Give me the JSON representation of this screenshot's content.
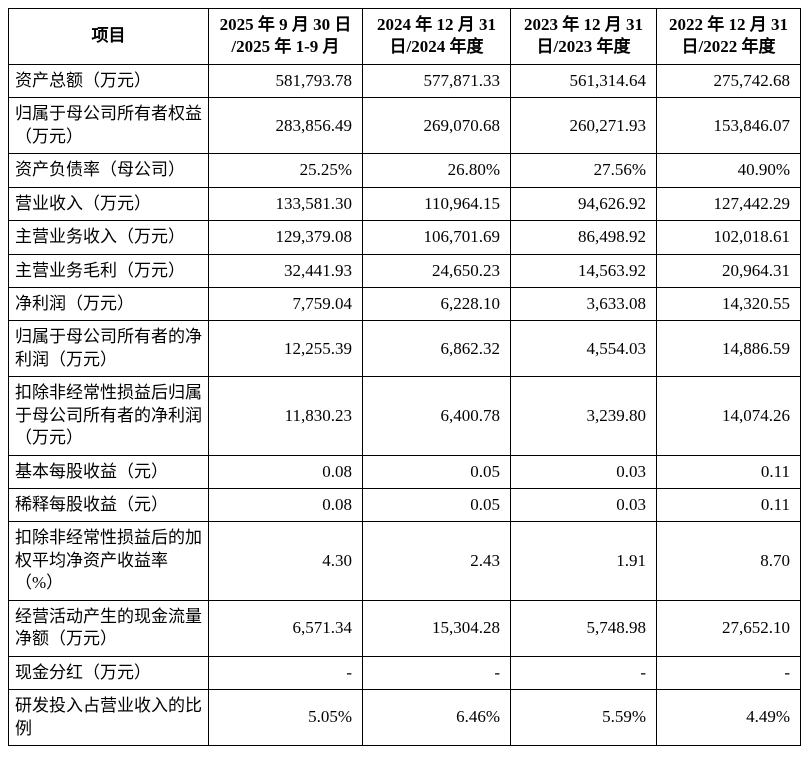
{
  "table": {
    "columns": [
      {
        "label": "项目"
      },
      {
        "label": "2025 年 9 月 30 日\n/2025 年 1-9 月"
      },
      {
        "label": "2024 年 12 月 31\n日/2024 年度"
      },
      {
        "label": "2023 年 12 月 31\n日/2023 年度"
      },
      {
        "label": "2022 年 12 月 31\n日/2022 年度"
      }
    ],
    "rows": [
      {
        "label": "资产总额（万元）",
        "values": [
          "581,793.78",
          "577,871.33",
          "561,314.64",
          "275,742.68"
        ]
      },
      {
        "label": "归属于母公司所有者权益（万元）",
        "values": [
          "283,856.49",
          "269,070.68",
          "260,271.93",
          "153,846.07"
        ]
      },
      {
        "label": "资产负债率（母公司）",
        "values": [
          "25.25%",
          "26.80%",
          "27.56%",
          "40.90%"
        ]
      },
      {
        "label": "营业收入（万元）",
        "values": [
          "133,581.30",
          "110,964.15",
          "94,626.92",
          "127,442.29"
        ]
      },
      {
        "label": "主营业务收入（万元）",
        "values": [
          "129,379.08",
          "106,701.69",
          "86,498.92",
          "102,018.61"
        ]
      },
      {
        "label": "主营业务毛利（万元）",
        "values": [
          "32,441.93",
          "24,650.23",
          "14,563.92",
          "20,964.31"
        ]
      },
      {
        "label": "净利润（万元）",
        "values": [
          "7,759.04",
          "6,228.10",
          "3,633.08",
          "14,320.55"
        ]
      },
      {
        "label": "归属于母公司所有者的净利润（万元）",
        "values": [
          "12,255.39",
          "6,862.32",
          "4,554.03",
          "14,886.59"
        ]
      },
      {
        "label": "扣除非经常性损益后归属于母公司所有者的净利润（万元）",
        "values": [
          "11,830.23",
          "6,400.78",
          "3,239.80",
          "14,074.26"
        ]
      },
      {
        "label": "基本每股收益（元）",
        "values": [
          "0.08",
          "0.05",
          "0.03",
          "0.11"
        ]
      },
      {
        "label": "稀释每股收益（元）",
        "values": [
          "0.08",
          "0.05",
          "0.03",
          "0.11"
        ]
      },
      {
        "label": "扣除非经常性损益后的加权平均净资产收益率（%）",
        "values": [
          "4.30",
          "2.43",
          "1.91",
          "8.70"
        ]
      },
      {
        "label": "经营活动产生的现金流量净额（万元）",
        "values": [
          "6,571.34",
          "15,304.28",
          "5,748.98",
          "27,652.10"
        ]
      },
      {
        "label": "现金分红（万元）",
        "values": [
          "-",
          "-",
          "-",
          "-"
        ]
      },
      {
        "label": "研发投入占营业收入的比例",
        "values": [
          "5.05%",
          "6.46%",
          "5.59%",
          "4.49%"
        ]
      }
    ]
  }
}
